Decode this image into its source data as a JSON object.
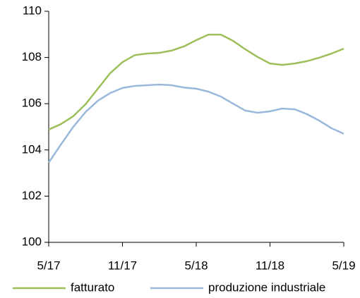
{
  "chart_data": {
    "type": "line",
    "categories": [
      "5/17",
      null,
      null,
      null,
      null,
      null,
      "11/17",
      null,
      null,
      null,
      null,
      null,
      "5/18",
      null,
      null,
      null,
      null,
      null,
      "11/18",
      null,
      null,
      null,
      null,
      null,
      "5/19"
    ],
    "series": [
      {
        "name": "fatturato",
        "color": "#9dbf5a",
        "values": [
          104.88,
          105.12,
          105.46,
          105.98,
          106.65,
          107.32,
          107.8,
          108.1,
          108.17,
          108.2,
          108.3,
          108.48,
          108.75,
          108.99,
          108.99,
          108.72,
          108.35,
          108.02,
          107.74,
          107.68,
          107.74,
          107.84,
          107.99,
          108.17,
          108.38
        ]
      },
      {
        "name": "produzione industriale",
        "color": "#9ab8dc",
        "values": [
          103.45,
          104.24,
          105.0,
          105.64,
          106.13,
          106.46,
          106.68,
          106.77,
          106.8,
          106.83,
          106.8,
          106.7,
          106.65,
          106.52,
          106.31,
          106.0,
          105.7,
          105.61,
          105.67,
          105.79,
          105.76,
          105.55,
          105.27,
          104.94,
          104.7
        ]
      }
    ],
    "ylim": [
      100,
      110
    ],
    "yticks": [
      100,
      102,
      104,
      106,
      108,
      110
    ],
    "legend": "bottom"
  }
}
